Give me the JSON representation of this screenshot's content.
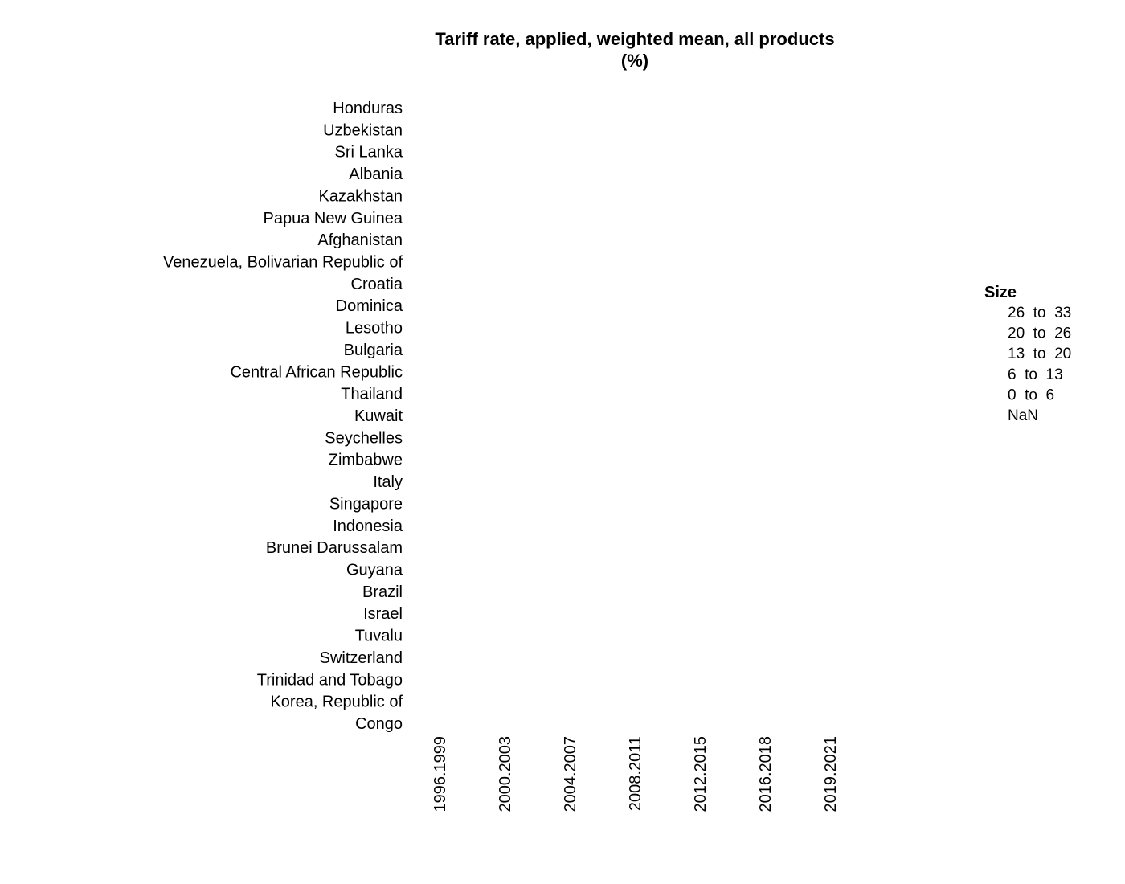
{
  "chart_data": {
    "type": "heatmap",
    "title_lines": [
      "Tariff rate, applied, weighted mean, all products",
      "(%)"
    ],
    "rows": [
      "Honduras",
      "Uzbekistan",
      "Sri Lanka",
      "Albania",
      "Kazakhstan",
      "Papua New Guinea",
      "Afghanistan",
      "Venezuela, Bolivarian Republic of",
      "Croatia",
      "Dominica",
      "Lesotho",
      "Bulgaria",
      "Central African Republic",
      "Thailand",
      "Kuwait",
      "Seychelles",
      "Zimbabwe",
      "Italy",
      "Singapore",
      "Indonesia",
      "Brunei Darussalam",
      "Guyana",
      "Brazil",
      "Israel",
      "Tuvalu",
      "Switzerland",
      "Trinidad and Tobago",
      "Korea, Republic of",
      "Congo"
    ],
    "columns": [
      "1996.1999",
      "2000.2003",
      "2004.2007",
      "2008.2011",
      "2012.2015",
      "2016.2018",
      "2019.2021"
    ],
    "values_shown": false,
    "legend": {
      "title": "Size",
      "placement": "right",
      "items": [
        "26  to  33",
        "20  to  26",
        "13  to  20",
        "6  to  13",
        "0  to  6",
        "NaN"
      ]
    }
  }
}
